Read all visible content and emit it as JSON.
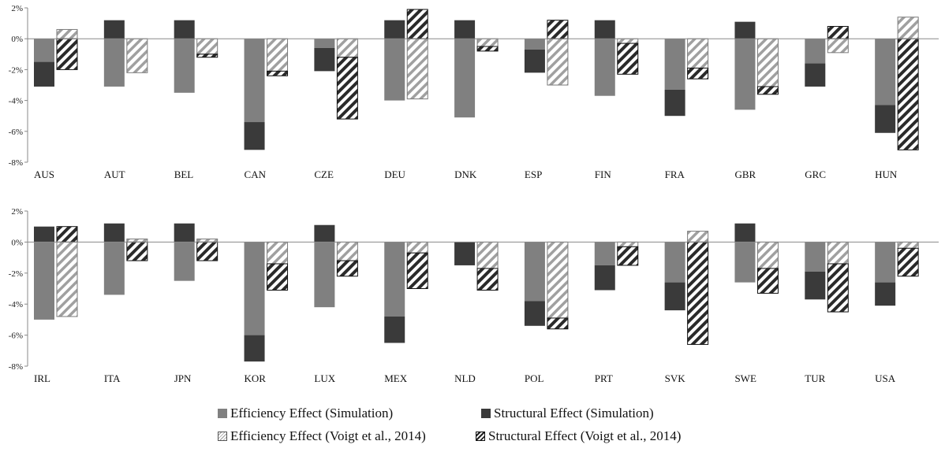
{
  "chart_data": [
    {
      "type": "bar",
      "stacked": true,
      "categories": [
        "AUS",
        "AUT",
        "BEL",
        "CAN",
        "CZE",
        "DEU",
        "DNK",
        "ESP",
        "FIN",
        "FRA",
        "GBR",
        "GRC",
        "HUN"
      ],
      "ylim": [
        -8,
        2
      ],
      "yticks": [
        "2%",
        "0%",
        "-2%",
        "-4%",
        "-6%",
        "-8%"
      ],
      "groups": [
        {
          "name": "Simulation",
          "series": [
            {
              "name": "Efficiency Effect (Simulation)",
              "values": [
                -1.5,
                -3.1,
                -3.5,
                -5.4,
                -0.6,
                -4.0,
                -5.1,
                -0.7,
                -3.7,
                -3.3,
                -4.6,
                -1.6,
                -4.3
              ]
            },
            {
              "name": "Structural Effect (Simulation)",
              "values": [
                -1.6,
                1.2,
                1.2,
                -1.8,
                -1.5,
                1.2,
                1.2,
                -1.5,
                1.2,
                -1.7,
                1.1,
                -1.5,
                -1.8
              ]
            }
          ]
        },
        {
          "name": "Voigt et al., 2014",
          "series": [
            {
              "name": "Efficiency Effect (Voigt et al., 2014)",
              "values": [
                0.6,
                -2.2,
                -1.0,
                -2.1,
                -1.2,
                -3.9,
                -0.5,
                -3.0,
                -0.3,
                -1.9,
                -3.1,
                -0.9,
                1.4
              ]
            },
            {
              "name": "Structural Effect (Voigt et al., 2014)",
              "values": [
                -2.0,
                0.0,
                -0.2,
                -0.3,
                -4.0,
                1.9,
                -0.3,
                1.2,
                -2.0,
                -0.7,
                -0.5,
                0.8,
                -7.2
              ]
            }
          ]
        }
      ]
    },
    {
      "type": "bar",
      "stacked": true,
      "categories": [
        "IRL",
        "ITA",
        "JPN",
        "KOR",
        "LUX",
        "MEX",
        "NLD",
        "POL",
        "PRT",
        "SVK",
        "SWE",
        "TUR",
        "USA"
      ],
      "ylim": [
        -8,
        2
      ],
      "yticks": [
        "2%",
        "0%",
        "-2%",
        "-4%",
        "-6%",
        "-8%"
      ],
      "groups": [
        {
          "name": "Simulation",
          "series": [
            {
              "name": "Efficiency Effect (Simulation)",
              "values": [
                -5.0,
                -3.4,
                -2.5,
                -6.0,
                -4.2,
                -4.8,
                0.0,
                -3.8,
                -1.5,
                -2.6,
                -2.6,
                -1.9,
                -2.6
              ]
            },
            {
              "name": "Structural Effect (Simulation)",
              "values": [
                1.0,
                1.2,
                1.2,
                -1.7,
                1.1,
                -1.7,
                -1.5,
                -1.6,
                -1.6,
                -1.8,
                1.2,
                -1.8,
                -1.5
              ]
            }
          ]
        },
        {
          "name": "Voigt et al., 2014",
          "series": [
            {
              "name": "Efficiency Effect (Voigt et al., 2014)",
              "values": [
                -4.8,
                0.2,
                0.2,
                -1.4,
                -1.2,
                -0.7,
                -1.7,
                -4.9,
                -0.3,
                0.7,
                -1.7,
                -1.4,
                -0.4
              ]
            },
            {
              "name": "Structural Effect (Voigt et al., 2014)",
              "values": [
                1.0,
                -1.2,
                -1.2,
                -1.7,
                -1.0,
                -2.3,
                -1.4,
                -0.7,
                -1.2,
                -6.6,
                -1.6,
                -3.1,
                -1.8
              ]
            }
          ]
        }
      ]
    }
  ],
  "legend": {
    "items": [
      {
        "label": "Efficiency Effect (Simulation)",
        "style": "solid-light"
      },
      {
        "label": "Structural Effect (Simulation)",
        "style": "solid-dark"
      },
      {
        "label": "Efficiency Effect (Voigt et al., 2014)",
        "style": "hatch-light"
      },
      {
        "label": "Structural Effect (Voigt et al., 2014)",
        "style": "hatch-dark"
      }
    ]
  },
  "colors": {
    "efficiency_sim": "#808080",
    "structural_sim": "#3a3a3a",
    "efficiency_hatch": "#a0a0a0",
    "structural_hatch": "#2a2a2a",
    "axis": "#888888"
  }
}
